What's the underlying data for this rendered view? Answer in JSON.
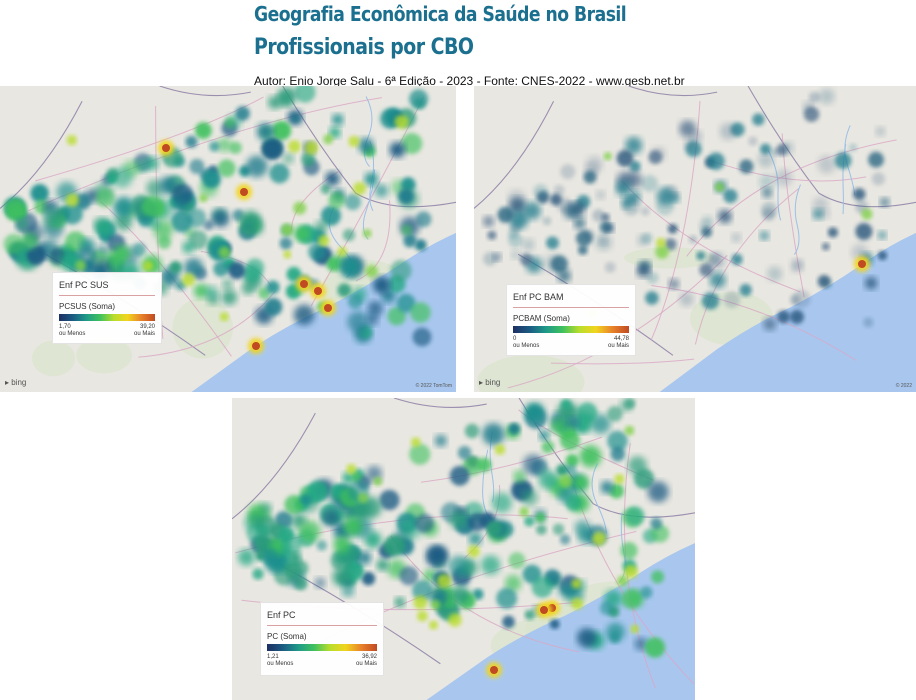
{
  "header": {
    "title_line1": "Geografia Econômica da Saúde no Brasil",
    "title_line2": "Profissionais por CBO",
    "credits": "Autor: Enio Jorge Salu - 6ª Edição - 2023 - Fonte: CNES-2022 - www.gesb.net.br"
  },
  "colors": {
    "land": "#e9e7e1",
    "ocean": "#a9c7ee",
    "border_line": "#9b8fb0",
    "road": "#d9a6c6",
    "heat_low": "#1d2f63",
    "heat_mid": "#3fc15e",
    "heat_high": "#c04a22"
  },
  "maps": [
    {
      "id": "sus",
      "layer_title": "Enf PC SUS",
      "field_label": "PCSUS (Soma)",
      "min_label": "1,70",
      "max_label": "39,20",
      "below_label": "ou Menos",
      "above_label": "ou Mais",
      "attribution": "bing",
      "copyright": "© 2022 TomTom",
      "intensity": "dense",
      "hotspots_red": 6
    },
    {
      "id": "bam",
      "layer_title": "Enf PC BAM",
      "field_label": "PCBAM (Soma)",
      "min_label": "0",
      "max_label": "44,78",
      "below_label": "ou Menos",
      "above_label": "ou Mais",
      "attribution": "bing",
      "copyright": "© 2022",
      "intensity": "sparse",
      "hotspots_red": 1
    },
    {
      "id": "pc",
      "layer_title": "Enf PC",
      "field_label": "PC (Soma)",
      "min_label": "1,21",
      "max_label": "36,92",
      "below_label": "ou Menos",
      "above_label": "ou Mais",
      "attribution": "",
      "copyright": "",
      "intensity": "dense",
      "hotspots_red": 3
    }
  ]
}
